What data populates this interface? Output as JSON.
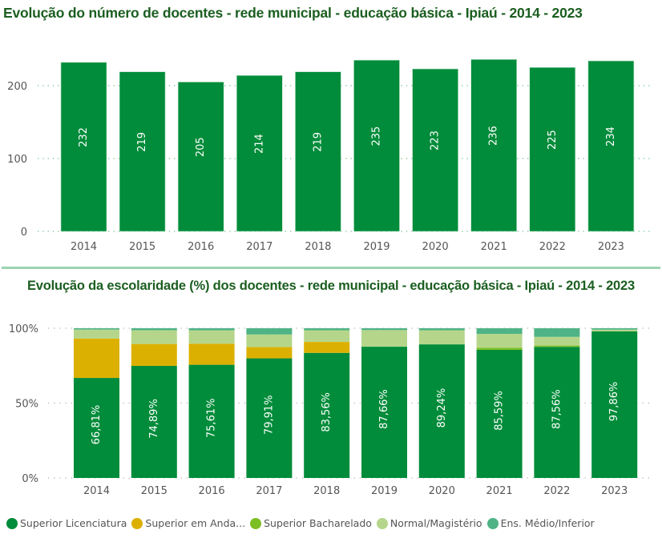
{
  "chart_data": [
    {
      "type": "bar",
      "title": "Evolução do número de docentes - rede municipal - educação básica - Ipiaú - 2014 - 2023",
      "xlabel": "",
      "ylabel": "",
      "categories": [
        "2014",
        "2015",
        "2016",
        "2017",
        "2018",
        "2019",
        "2020",
        "2021",
        "2022",
        "2023"
      ],
      "values": [
        232,
        219,
        205,
        214,
        219,
        235,
        223,
        236,
        225,
        234
      ],
      "ylim": [
        0,
        250
      ],
      "yticks": [
        0,
        100,
        200
      ],
      "ytick_labels": [
        "0",
        "100",
        "200"
      ],
      "grid": true,
      "color": "#008c3a",
      "data_labels": true
    },
    {
      "type": "bar",
      "stacked": "100%",
      "title": "Evolução da escolaridade (%) dos docentes - rede municipal - educação básica - Ipiaú - 2014 - 2023",
      "xlabel": "",
      "ylabel": "",
      "categories": [
        "2014",
        "2015",
        "2016",
        "2017",
        "2018",
        "2019",
        "2020",
        "2021",
        "2022",
        "2023"
      ],
      "ylim": [
        0,
        100
      ],
      "yticks": [
        0,
        50,
        100
      ],
      "ytick_labels": [
        "0%",
        "50%",
        "100%"
      ],
      "grid": true,
      "legend_position": "bottom",
      "series": [
        {
          "name": "Superior Licenciatura",
          "color": "#008c3a",
          "values": [
            66.81,
            74.89,
            75.61,
            79.91,
            83.56,
            87.66,
            89.24,
            85.59,
            87.56,
            97.86
          ],
          "labels": [
            "66,81%",
            "74,89%",
            "75,61%",
            "79,91%",
            "83,56%",
            "87,66%",
            "89,24%",
            "85,59%",
            "87,56%",
            "97,86%"
          ]
        },
        {
          "name": "Superior em Anda...",
          "color": "#dcb000",
          "values": [
            26.3,
            14.6,
            14.1,
            7.5,
            7.3,
            0,
            0,
            0,
            0,
            0
          ]
        },
        {
          "name": "Superior Bacharelado",
          "color": "#7cbf24",
          "values": [
            0,
            0,
            0,
            0,
            0,
            0,
            0,
            1.3,
            0.9,
            0
          ]
        },
        {
          "name": "Normal/Magistério",
          "color": "#b5d68a",
          "values": [
            6.0,
            9.2,
            8.9,
            8.4,
            7.8,
            11.1,
            9.4,
            9.3,
            5.8,
            1.2
          ]
        },
        {
          "name": "Ens. Médio/Inferior",
          "color": "#4fb386",
          "values": [
            0.89,
            1.31,
            1.39,
            4.19,
            1.34,
            1.24,
            1.36,
            3.81,
            5.74,
            0.94
          ]
        }
      ]
    }
  ],
  "legend": [
    {
      "label": "Superior Licenciatura",
      "color": "#008c3a"
    },
    {
      "label": "Superior em Anda...",
      "color": "#dcb000"
    },
    {
      "label": "Superior Bacharelado",
      "color": "#7cbf24"
    },
    {
      "label": "Normal/Magistério",
      "color": "#b5d68a"
    },
    {
      "label": "Ens. Médio/Inferior",
      "color": "#4fb386"
    }
  ]
}
